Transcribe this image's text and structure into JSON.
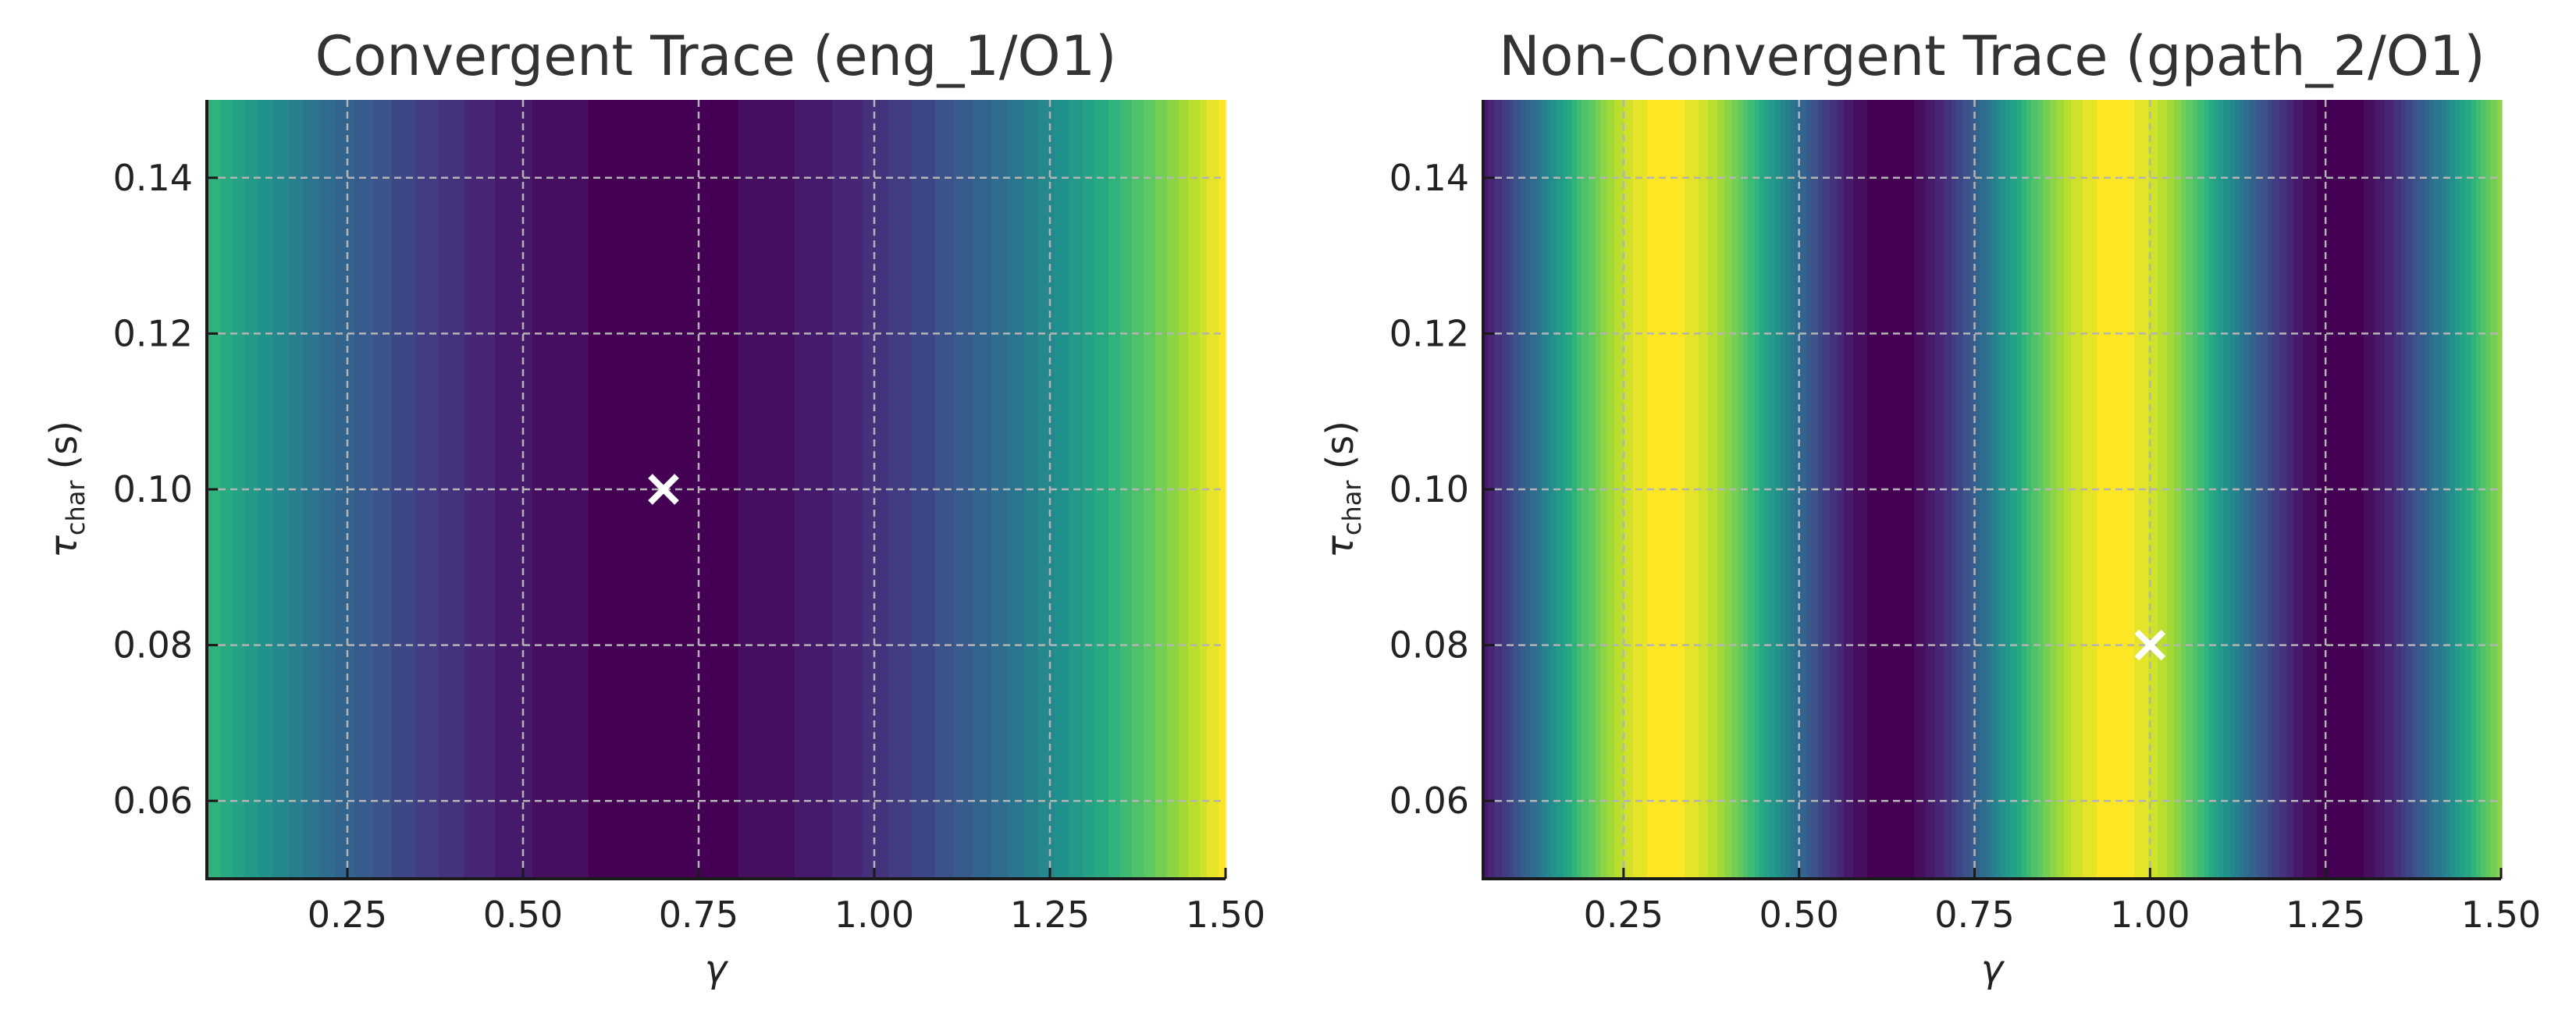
{
  "chart_data": [
    {
      "type": "heatmap",
      "subtype": "filled-contour",
      "title": "Convergent Trace (eng_1/O1)",
      "xlabel": "γ",
      "ylabel": {
        "symbol": "τ",
        "subscript": "char",
        "unit": "(s)"
      },
      "xlim": [
        0.05,
        1.5
      ],
      "ylim": [
        0.05,
        0.15
      ],
      "xticks": [
        "0.25",
        "0.50",
        "0.75",
        "1.00",
        "1.25",
        "1.50"
      ],
      "yticks": [
        "0.06",
        "0.08",
        "0.10",
        "0.12",
        "0.14"
      ],
      "grid": true,
      "colormap": "viridis",
      "z_varies_along": "γ",
      "gamma": [
        0.05,
        0.1,
        0.15,
        0.2,
        0.25,
        0.3,
        0.35,
        0.4,
        0.45,
        0.5,
        0.55,
        0.6,
        0.65,
        0.7,
        0.75,
        0.8,
        0.85,
        0.9,
        0.95,
        1.0,
        1.05,
        1.1,
        1.15,
        1.2,
        1.25,
        1.3,
        1.35,
        1.4,
        1.45,
        1.5
      ],
      "z": [
        0.4225,
        0.36,
        0.3025,
        0.25,
        0.2025,
        0.16,
        0.1225,
        0.09,
        0.0625,
        0.04,
        0.0225,
        0.01,
        0.0025,
        0,
        0.0025,
        0.01,
        0.0225,
        0.04,
        0.0625,
        0.09,
        0.1225,
        0.16,
        0.2025,
        0.25,
        0.3025,
        0.36,
        0.4225,
        0.49,
        0.5625,
        0.64
      ],
      "marker": {
        "symbol": "x",
        "color": "#ffffff",
        "gamma": 0.7,
        "tau": 0.1
      }
    },
    {
      "type": "heatmap",
      "subtype": "filled-contour",
      "title": "Non-Convergent Trace (gpath_2/O1)",
      "xlabel": "γ",
      "ylabel": {
        "symbol": "τ",
        "subscript": "char",
        "unit": "(s)"
      },
      "xlim": [
        0.05,
        1.5
      ],
      "ylim": [
        0.05,
        0.15
      ],
      "xticks": [
        "0.25",
        "0.50",
        "0.75",
        "1.00",
        "1.25",
        "1.50"
      ],
      "yticks": [
        "0.06",
        "0.08",
        "0.10",
        "0.12",
        "0.14"
      ],
      "grid": true,
      "colormap": "viridis",
      "z_varies_along": "γ",
      "gamma": [
        0.05,
        0.1,
        0.15,
        0.2,
        0.25,
        0.3,
        0.35,
        0.4,
        0.45,
        0.5,
        0.55,
        0.6,
        0.65,
        0.7,
        0.75,
        0.8,
        0.85,
        0.9,
        0.95,
        1.0,
        1.05,
        1.1,
        1.15,
        1.2,
        1.25,
        1.3,
        1.35,
        1.4,
        1.45,
        1.5
      ],
      "z": [
        0.085,
        0.265,
        0.5,
        0.735,
        0.915,
        0.998,
        0.962,
        0.817,
        0.598,
        0.355,
        0.146,
        0.022,
        0.01,
        0.113,
        0.309,
        0.549,
        0.778,
        0.941,
        1.0,
        0.941,
        0.778,
        0.549,
        0.309,
        0.113,
        0.01,
        0.022,
        0.146,
        0.355,
        0.598,
        0.817
      ],
      "marker": {
        "symbol": "x",
        "color": "#ffffff",
        "gamma": 1.0,
        "tau": 0.08
      }
    }
  ],
  "colors": {
    "viridis": [
      "#440154",
      "#472d7b",
      "#3b528b",
      "#2c728e",
      "#21918c",
      "#28ae80",
      "#5ec962",
      "#addc30",
      "#fde725"
    ],
    "grid": "#b4b4b4",
    "axis": "#1a1a1a"
  }
}
